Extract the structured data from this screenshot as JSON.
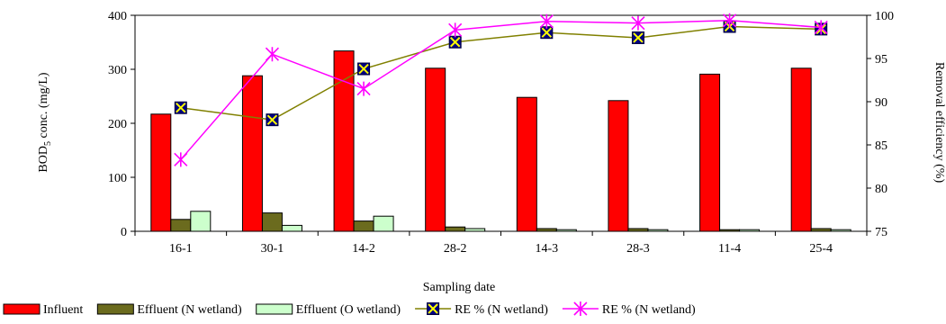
{
  "chart_data": {
    "type": "bar",
    "categories": [
      "16-1",
      "30-1",
      "14-2",
      "28-2",
      "14-3",
      "28-3",
      "11-4",
      "25-4"
    ],
    "xlabel": "Sampling date",
    "ylabel_main": "BOD",
    "ylabel_sub": "5",
    "ylabel_rest": " conc. (mg/L)",
    "y2label": "Removal efficiency (%)",
    "ylim": [
      0,
      400
    ],
    "y2lim": [
      75,
      100
    ],
    "yticks": [
      0,
      100,
      200,
      300,
      400
    ],
    "y2ticks": [
      75,
      80,
      85,
      90,
      95,
      100
    ],
    "bar_series": [
      {
        "name": "Influent",
        "color": "#ff0000",
        "values": [
          217,
          288,
          334,
          302,
          248,
          242,
          291,
          302
        ]
      },
      {
        "name": "Effluent (N wetland)",
        "color": "#6b6b1e",
        "values": [
          22,
          34,
          19,
          8,
          5,
          5,
          3,
          5
        ]
      },
      {
        "name": "Effluent (O wetland)",
        "color": "#ccffcc",
        "values": [
          37,
          11,
          28,
          5,
          3,
          3,
          3,
          3
        ]
      }
    ],
    "line_series": [
      {
        "name": "RE % (N wetland)",
        "color": "#808000",
        "marker": "square-x",
        "values": [
          89.3,
          87.9,
          93.8,
          96.9,
          98.0,
          97.4,
          98.7,
          98.4
        ]
      },
      {
        "name": "RE % (N wetland)",
        "color": "#ff00ff",
        "marker": "asterisk",
        "values": [
          83.3,
          95.5,
          91.5,
          98.3,
          99.3,
          99.1,
          99.4,
          98.6
        ]
      }
    ],
    "legend_position": "bottom"
  }
}
